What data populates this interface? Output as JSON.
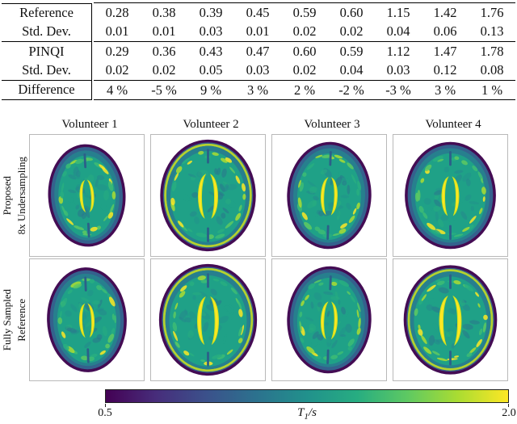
{
  "table": {
    "rows": [
      {
        "label": "Reference",
        "values": [
          "0.28",
          "0.38",
          "0.39",
          "0.45",
          "0.59",
          "0.60",
          "1.15",
          "1.42",
          "1.76"
        ]
      },
      {
        "label": "Std. Dev.",
        "values": [
          "0.01",
          "0.01",
          "0.03",
          "0.01",
          "0.02",
          "0.02",
          "0.04",
          "0.06",
          "0.13"
        ]
      },
      {
        "label": "PINQI",
        "values": [
          "0.29",
          "0.36",
          "0.43",
          "0.47",
          "0.60",
          "0.59",
          "1.12",
          "1.47",
          "1.78"
        ]
      },
      {
        "label": "Std. Dev.",
        "values": [
          "0.02",
          "0.02",
          "0.05",
          "0.03",
          "0.02",
          "0.04",
          "0.03",
          "0.12",
          "0.08"
        ]
      },
      {
        "label": "Difference",
        "values": [
          "4 %",
          "-5 %",
          "9 %",
          "3 %",
          "2 %",
          "-2 %",
          "-3 %",
          "3 %",
          "1 %"
        ]
      }
    ]
  },
  "figure": {
    "column_titles": [
      "Volunteer 1",
      "Volunteer 2",
      "Volunteer 3",
      "Volunteer 4"
    ],
    "row_labels": [
      {
        "line1": "Proposed",
        "line2": "8x Undersampling"
      },
      {
        "line1": "Fully Sampled",
        "line2": "Reference"
      }
    ],
    "colorbar": {
      "min": "0.5",
      "max": "2.0",
      "label_symbol": "T",
      "label_subscript": "1",
      "label_unit": "/s",
      "colormap": "viridis",
      "colors": [
        "#440154",
        "#472d7b",
        "#3b518b",
        "#2c728e",
        "#21918c",
        "#27ad81",
        "#5ec962",
        "#aadc32",
        "#fde725"
      ]
    }
  }
}
